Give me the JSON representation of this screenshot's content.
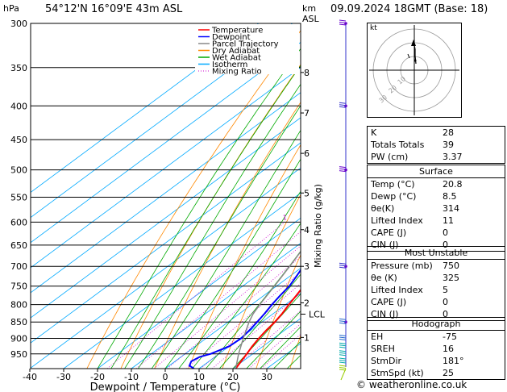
{
  "header": {
    "hpa_label": "hPa",
    "location": "54°12'N  16°09'E  43m  ASL",
    "km_label": "km",
    "asl_label": "ASL",
    "datetime": "09.09.2024  18GMT  (Base: 18)"
  },
  "legend": [
    {
      "label": "Temperature",
      "color": "#ff0000",
      "style": "solid"
    },
    {
      "label": "Dewpoint",
      "color": "#0000ff",
      "style": "solid"
    },
    {
      "label": "Parcel Trajectory",
      "color": "#888888",
      "style": "solid"
    },
    {
      "label": "Dry Adiabat",
      "color": "#ff8800",
      "style": "solid"
    },
    {
      "label": "Wet Adiabat",
      "color": "#00aa00",
      "style": "solid"
    },
    {
      "label": "Isotherm",
      "color": "#00aaff",
      "style": "solid"
    },
    {
      "label": "Mixing Ratio",
      "color": "#cc00cc",
      "style": "dotted"
    }
  ],
  "chart_data": {
    "type": "line",
    "xlabel": "Dewpoint / Temperature (°C)",
    "ylabel": "hPa",
    "xlim": [
      -40,
      40
    ],
    "x_ticks": [
      "-40",
      "-30",
      "-20",
      "-10",
      "0",
      "10",
      "20",
      "30"
    ],
    "y_ticks": [
      "300",
      "350",
      "400",
      "450",
      "500",
      "550",
      "600",
      "650",
      "700",
      "750",
      "800",
      "850",
      "900",
      "950"
    ],
    "km_ticks": [
      {
        "label": "8",
        "p": 356
      },
      {
        "label": "7",
        "p": 410
      },
      {
        "label": "6",
        "p": 472
      },
      {
        "label": "5",
        "p": 542
      },
      {
        "label": "4",
        "p": 616
      },
      {
        "label": "3",
        "p": 700
      },
      {
        "label": "2",
        "p": 795
      },
      {
        "label": "1",
        "p": 897
      }
    ],
    "lcl": {
      "label": "LCL",
      "p": 827
    },
    "mixing_ratio_axis": "Mixing Ratio (g/kg)",
    "mixing_ratio_labels": [
      "1",
      "2",
      "3",
      "4",
      "6",
      "8",
      "10",
      "15",
      "20",
      "25"
    ],
    "series": [
      {
        "name": "Temperature",
        "color": "#ff0000",
        "points": [
          [
            1000,
            20.8
          ],
          [
            975,
            19.5
          ],
          [
            950,
            18.2
          ],
          [
            925,
            16.8
          ],
          [
            900,
            15.6
          ],
          [
            875,
            14.6
          ],
          [
            850,
            13.8
          ],
          [
            825,
            12.6
          ],
          [
            800,
            11.0
          ],
          [
            775,
            9.6
          ],
          [
            750,
            8.0
          ],
          [
            725,
            6.2
          ],
          [
            700,
            4.4
          ],
          [
            675,
            2.6
          ],
          [
            650,
            0.8
          ],
          [
            625,
            -0.9
          ],
          [
            600,
            -2.8
          ],
          [
            575,
            -4.8
          ],
          [
            550,
            -7.0
          ],
          [
            525,
            -9.4
          ],
          [
            500,
            -12.0
          ],
          [
            475,
            -14.6
          ],
          [
            450,
            -17.4
          ],
          [
            425,
            -20.4
          ],
          [
            400,
            -23.6
          ],
          [
            375,
            -27.2
          ],
          [
            350,
            -31.0
          ],
          [
            325,
            -35.4
          ],
          [
            300,
            -40.5
          ]
        ]
      },
      {
        "name": "Dewpoint",
        "color": "#0000ff",
        "points": [
          [
            1000,
            8.5
          ],
          [
            990,
            6.0
          ],
          [
            975,
            4.8
          ],
          [
            960,
            5.5
          ],
          [
            950,
            7.5
          ],
          [
            925,
            10.0
          ],
          [
            900,
            10.4
          ],
          [
            875,
            9.6
          ],
          [
            850,
            8.6
          ],
          [
            825,
            7.4
          ],
          [
            800,
            6.0
          ],
          [
            775,
            4.8
          ],
          [
            750,
            3.8
          ],
          [
            725,
            2.0
          ],
          [
            700,
            0.0
          ],
          [
            675,
            -1.6
          ],
          [
            650,
            -3.4
          ],
          [
            625,
            -4.8
          ],
          [
            600,
            -6.6
          ],
          [
            575,
            -8.6
          ],
          [
            550,
            -11.0
          ],
          [
            525,
            -12.8
          ],
          [
            500,
            -13.2
          ],
          [
            475,
            -15.6
          ],
          [
            450,
            -18.8
          ],
          [
            425,
            -22.6
          ],
          [
            400,
            -26.6
          ],
          [
            375,
            -31.2
          ],
          [
            350,
            -36.0
          ],
          [
            325,
            -41.5
          ],
          [
            300,
            -47.5
          ]
        ]
      },
      {
        "name": "Parcel Trajectory",
        "color": "#888888",
        "points": [
          [
            1000,
            20.8
          ],
          [
            950,
            15.8
          ],
          [
            900,
            11.0
          ],
          [
            850,
            6.2
          ],
          [
            827,
            4.2
          ],
          [
            800,
            2.4
          ],
          [
            750,
            -0.6
          ],
          [
            700,
            -4.0
          ],
          [
            650,
            -7.8
          ],
          [
            600,
            -12.0
          ],
          [
            550,
            -16.8
          ],
          [
            500,
            -22.2
          ],
          [
            450,
            -28.4
          ],
          [
            400,
            -35.6
          ],
          [
            350,
            -44.0
          ],
          [
            300,
            -54.0
          ]
        ]
      }
    ]
  },
  "hodograph": {
    "unit_label": "kt",
    "ring_labels": [
      "10",
      "20",
      "30"
    ]
  },
  "indices": [
    {
      "label": "K",
      "value": "28"
    },
    {
      "label": "Totals Totals",
      "value": "39"
    },
    {
      "label": "PW (cm)",
      "value": "3.37"
    }
  ],
  "surface": {
    "title": "Surface",
    "rows": [
      {
        "label": "Temp (°C)",
        "value": "20.8"
      },
      {
        "label": "Dewp (°C)",
        "value": "8.5"
      },
      {
        "label": "θe(K)",
        "value": "314"
      },
      {
        "label": "Lifted Index",
        "value": "11"
      },
      {
        "label": "CAPE (J)",
        "value": "0"
      },
      {
        "label": "CIN (J)",
        "value": "0"
      }
    ]
  },
  "most_unstable": {
    "title": "Most Unstable",
    "rows": [
      {
        "label": "Pressure (mb)",
        "value": "750"
      },
      {
        "label": "θe (K)",
        "value": "325"
      },
      {
        "label": "Lifted Index",
        "value": "5"
      },
      {
        "label": "CAPE (J)",
        "value": "0"
      },
      {
        "label": "CIN (J)",
        "value": "0"
      }
    ]
  },
  "hodograph_params": {
    "title": "Hodograph",
    "rows": [
      {
        "label": "EH",
        "value": "-75"
      },
      {
        "label": "SREH",
        "value": "16"
      },
      {
        "label": "StmDir",
        "value": "181°"
      },
      {
        "label": "StmSpd (kt)",
        "value": "25"
      }
    ]
  },
  "credit": "© weatheronline.co.uk"
}
